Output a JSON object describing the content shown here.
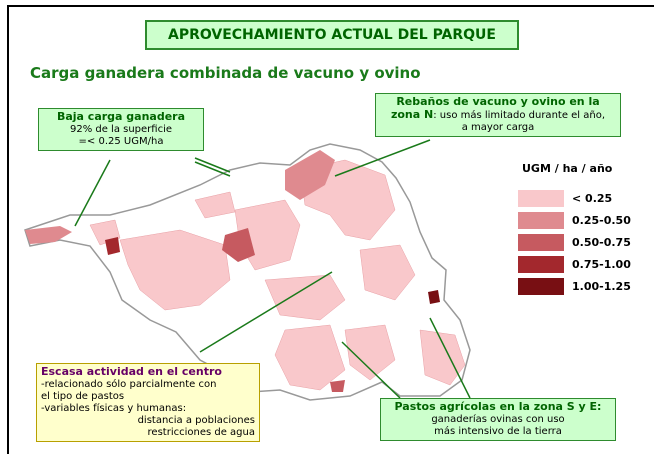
{
  "title": "APROVECHAMIENTO ACTUAL DEL PARQUE",
  "subtitle": "Carga ganadera combinada de vacuno y ovino",
  "legend": {
    "title": "UGM / ha / año",
    "items": [
      {
        "label": "< 0.25",
        "color": "#f9c8cb"
      },
      {
        "label": "0.25-0.50",
        "color": "#df8a8f"
      },
      {
        "label": "0.50-0.75",
        "color": "#c65a60"
      },
      {
        "label": "0.75-1.00",
        "color": "#a3282d"
      },
      {
        "label": "1.00-1.25",
        "color": "#780f13"
      }
    ]
  },
  "callouts": {
    "baja": {
      "heading": "Baja carga ganadera",
      "lines": [
        "92% de la superficie",
        "=< 0.25 UGM/ha"
      ]
    },
    "norte": {
      "heading": "Rebaños de vacuno y ovino en la",
      "heading2": "zona N",
      "lines": [
        ": uso más limitado durante el año,",
        "a mayor carga"
      ]
    },
    "centro": {
      "heading": "Escasa actividad en el centro",
      "lines": [
        "-relacionado sólo parcialmente con",
        "el tipo de pastos",
        "-variables físicas y humanas:",
        "distancia a poblaciones",
        "restricciones de agua"
      ]
    },
    "sur": {
      "heading": "Pastos agrícolas en la zona S y E:",
      "lines": [
        "ganaderías ovinas con uso",
        "más intensivo de la tierra"
      ]
    }
  }
}
